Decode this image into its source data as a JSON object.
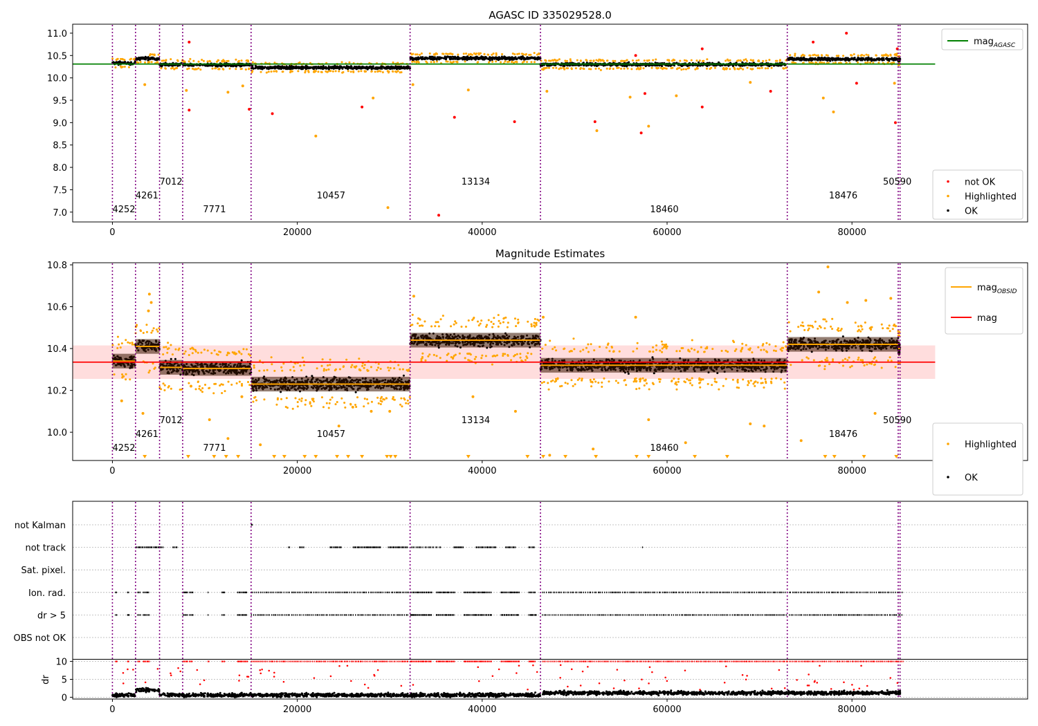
{
  "figure": {
    "background": "#ffffff"
  },
  "colors": {
    "ok": "#000000",
    "highlighted": "#ffa500",
    "not_ok": "#ff0000",
    "obs_line": "#800080",
    "agasc_line": "#008000",
    "mag_line": "#ff0000",
    "mag_band": "#ffd7d7",
    "obsid_line": "#ffa500",
    "grid": "#b0b0b0"
  },
  "chart_data": [
    {
      "type": "scatter",
      "title": "AGASC ID 335029528.0",
      "xlim": [
        -4300,
        99000
      ],
      "ylim": [
        6.78,
        11.2
      ],
      "xticks": [
        0,
        20000,
        40000,
        60000,
        80000
      ],
      "xtick_labels": [
        "0",
        "20000",
        "40000",
        "60000",
        "80000"
      ],
      "yticks": [
        7.0,
        7.5,
        8.0,
        8.5,
        9.0,
        9.5,
        10.0,
        10.5,
        11.0
      ],
      "ytick_labels": [
        "7.0",
        "7.5",
        "8.0",
        "8.5",
        "9.0",
        "9.5",
        "10.0",
        "10.5",
        "11.0"
      ],
      "reference_lines": [
        {
          "name": "mag_AGASC",
          "y": 10.31,
          "x_range": [
            -4300,
            89000
          ]
        }
      ],
      "legend": {
        "top_right": [
          {
            "label": "mag",
            "sub": "AGASC",
            "kind": "line",
            "color_key": "agasc_line"
          }
        ],
        "bottom_right": [
          {
            "label": "not OK",
            "kind": "dot",
            "color_key": "not_ok"
          },
          {
            "label": "Highlighted",
            "kind": "dot",
            "color_key": "highlighted"
          },
          {
            "label": "OK",
            "kind": "dot",
            "color_key": "ok"
          }
        ]
      },
      "outliers": [
        {
          "x": 8300,
          "y": 10.8,
          "kind": "not_ok"
        },
        {
          "x": 8300,
          "y": 9.28,
          "kind": "not_ok"
        },
        {
          "x": 14800,
          "y": 9.3,
          "kind": "not_ok"
        },
        {
          "x": 17300,
          "y": 9.2,
          "kind": "not_ok"
        },
        {
          "x": 27000,
          "y": 9.35,
          "kind": "not_ok"
        },
        {
          "x": 35300,
          "y": 6.93,
          "kind": "not_ok"
        },
        {
          "x": 37000,
          "y": 9.12,
          "kind": "not_ok"
        },
        {
          "x": 43500,
          "y": 9.02,
          "kind": "not_ok"
        },
        {
          "x": 52200,
          "y": 9.02,
          "kind": "not_ok"
        },
        {
          "x": 57200,
          "y": 8.77,
          "kind": "not_ok"
        },
        {
          "x": 57600,
          "y": 9.65,
          "kind": "not_ok"
        },
        {
          "x": 56600,
          "y": 10.5,
          "kind": "not_ok"
        },
        {
          "x": 63800,
          "y": 9.35,
          "kind": "not_ok"
        },
        {
          "x": 63800,
          "y": 10.65,
          "kind": "not_ok"
        },
        {
          "x": 71200,
          "y": 9.7,
          "kind": "not_ok"
        },
        {
          "x": 75800,
          "y": 10.8,
          "kind": "not_ok"
        },
        {
          "x": 79400,
          "y": 11.0,
          "kind": "not_ok"
        },
        {
          "x": 80500,
          "y": 9.88,
          "kind": "not_ok"
        },
        {
          "x": 84700,
          "y": 9.0,
          "kind": "not_ok"
        },
        {
          "x": 84900,
          "y": 10.65,
          "kind": "not_ok"
        },
        {
          "x": 22000,
          "y": 8.7,
          "kind": "highlighted"
        },
        {
          "x": 29800,
          "y": 7.1,
          "kind": "highlighted"
        },
        {
          "x": 28200,
          "y": 9.55,
          "kind": "highlighted"
        },
        {
          "x": 38500,
          "y": 9.73,
          "kind": "highlighted"
        },
        {
          "x": 56000,
          "y": 9.57,
          "kind": "highlighted"
        },
        {
          "x": 58000,
          "y": 8.92,
          "kind": "highlighted"
        },
        {
          "x": 52400,
          "y": 8.82,
          "kind": "highlighted"
        },
        {
          "x": 76900,
          "y": 9.55,
          "kind": "highlighted"
        },
        {
          "x": 78000,
          "y": 9.24,
          "kind": "highlighted"
        },
        {
          "x": 84600,
          "y": 9.88,
          "kind": "highlighted"
        },
        {
          "x": 3500,
          "y": 9.85,
          "kind": "highlighted"
        },
        {
          "x": 8000,
          "y": 9.72,
          "kind": "highlighted"
        },
        {
          "x": 12500,
          "y": 9.68,
          "kind": "highlighted"
        },
        {
          "x": 14100,
          "y": 9.82,
          "kind": "highlighted"
        },
        {
          "x": 32500,
          "y": 9.85,
          "kind": "highlighted"
        },
        {
          "x": 47000,
          "y": 9.7,
          "kind": "highlighted"
        },
        {
          "x": 61000,
          "y": 9.6,
          "kind": "highlighted"
        },
        {
          "x": 69000,
          "y": 9.9,
          "kind": "highlighted"
        }
      ]
    },
    {
      "type": "scatter",
      "title": "Magnitude Estimates",
      "xlim": [
        -4300,
        99000
      ],
      "ylim": [
        9.865,
        10.81
      ],
      "xticks": [
        0,
        20000,
        40000,
        60000,
        80000
      ],
      "xtick_labels": [
        "0",
        "20000",
        "40000",
        "60000",
        "80000"
      ],
      "yticks": [
        10.0,
        10.2,
        10.4,
        10.6,
        10.8
      ],
      "ytick_labels": [
        "10.0",
        "10.2",
        "10.4",
        "10.6",
        "10.8"
      ],
      "reference_lines": [
        {
          "name": "mag",
          "y": 10.335,
          "band": [
            10.255,
            10.415
          ],
          "x_range": [
            -4300,
            89000
          ]
        }
      ],
      "legend": {
        "top_right": [
          {
            "label": "mag",
            "sub": "OBSID",
            "kind": "line",
            "color_key": "obsid_line"
          },
          {
            "label": "mag",
            "sub": "",
            "kind": "line",
            "color_key": "mag_line"
          }
        ],
        "bottom_right": [
          {
            "label": "Highlighted",
            "kind": "dot",
            "color_key": "highlighted"
          },
          {
            "label": "OK",
            "kind": "dot",
            "color_key": "ok"
          }
        ]
      },
      "outliers": [
        {
          "x": 4000,
          "y": 10.66,
          "kind": "highlighted"
        },
        {
          "x": 4200,
          "y": 10.62,
          "kind": "highlighted"
        },
        {
          "x": 3900,
          "y": 10.58,
          "kind": "highlighted"
        },
        {
          "x": 77400,
          "y": 10.79,
          "kind": "highlighted"
        },
        {
          "x": 32600,
          "y": 10.65,
          "kind": "highlighted"
        },
        {
          "x": 46600,
          "y": 10.55,
          "kind": "highlighted"
        },
        {
          "x": 56600,
          "y": 10.55,
          "kind": "highlighted"
        },
        {
          "x": 76400,
          "y": 10.67,
          "kind": "highlighted"
        },
        {
          "x": 79500,
          "y": 10.62,
          "kind": "highlighted"
        },
        {
          "x": 81500,
          "y": 10.63,
          "kind": "highlighted"
        },
        {
          "x": 84200,
          "y": 10.64,
          "kind": "highlighted"
        },
        {
          "x": 26000,
          "y": 10.12,
          "kind": "highlighted"
        },
        {
          "x": 28000,
          "y": 10.1,
          "kind": "highlighted"
        },
        {
          "x": 30000,
          "y": 10.1,
          "kind": "highlighted"
        },
        {
          "x": 39000,
          "y": 10.17,
          "kind": "highlighted"
        },
        {
          "x": 43600,
          "y": 10.1,
          "kind": "highlighted"
        },
        {
          "x": 16000,
          "y": 9.94,
          "kind": "highlighted"
        },
        {
          "x": 24500,
          "y": 10.03,
          "kind": "highlighted"
        },
        {
          "x": 10500,
          "y": 10.06,
          "kind": "highlighted"
        },
        {
          "x": 12500,
          "y": 9.97,
          "kind": "highlighted"
        },
        {
          "x": 52000,
          "y": 9.92,
          "kind": "highlighted"
        },
        {
          "x": 58000,
          "y": 10.06,
          "kind": "highlighted"
        },
        {
          "x": 62000,
          "y": 9.95,
          "kind": "highlighted"
        },
        {
          "x": 69000,
          "y": 10.04,
          "kind": "highlighted"
        },
        {
          "x": 70500,
          "y": 10.03,
          "kind": "highlighted"
        },
        {
          "x": 74500,
          "y": 9.96,
          "kind": "highlighted"
        },
        {
          "x": 82500,
          "y": 10.09,
          "kind": "highlighted"
        },
        {
          "x": 47300,
          "y": 9.89,
          "kind": "highlighted"
        },
        {
          "x": 1000,
          "y": 10.15,
          "kind": "highlighted"
        },
        {
          "x": 3300,
          "y": 10.09,
          "kind": "highlighted"
        },
        {
          "x": 8500,
          "y": 10.22,
          "kind": "highlighted"
        },
        {
          "x": 14000,
          "y": 10.17,
          "kind": "highlighted"
        }
      ],
      "below_axis_markers": [
        3500,
        8200,
        11000,
        12300,
        13600,
        17500,
        18600,
        20800,
        22000,
        24300,
        25500,
        27000,
        29700,
        30100,
        30600,
        38500,
        44900,
        46600,
        49000,
        52300,
        56700,
        58000,
        63000,
        66500,
        77100,
        78100,
        81300,
        84800
      ]
    },
    {
      "type": "scatter",
      "title": "",
      "xlim": [
        -4300,
        99000
      ],
      "flag_rows": [
        "not Kalman",
        "not track",
        "Sat. pixel.",
        "Ion. rad.",
        "dr > 5",
        "OBS not OK"
      ],
      "flag_intervals": {
        "not Kalman": [
          [
            15000,
            15100
          ]
        ],
        "not track": [
          [
            2500,
            5500
          ],
          [
            6500,
            7000
          ],
          [
            19000,
            19200
          ],
          [
            20200,
            20700
          ],
          [
            23500,
            24800
          ],
          [
            26000,
            29000
          ],
          [
            29800,
            32000
          ],
          [
            32300,
            35600
          ],
          [
            36900,
            38000
          ],
          [
            39300,
            41500
          ],
          [
            42500,
            43600
          ],
          [
            45000,
            45700
          ],
          [
            57300,
            57400
          ]
        ],
        "Sat. pixel.": [],
        "Ion. rad.": [
          [
            300,
            500
          ],
          [
            1600,
            1800
          ],
          [
            2700,
            3000
          ],
          [
            3300,
            4000
          ],
          [
            7600,
            8100
          ],
          [
            8300,
            8700
          ],
          [
            10300,
            10400
          ],
          [
            11800,
            12100
          ],
          [
            13500,
            14600
          ],
          [
            15000,
            32000
          ],
          [
            32200,
            34500
          ],
          [
            35000,
            37000
          ],
          [
            38000,
            41000
          ],
          [
            42000,
            44000
          ],
          [
            45000,
            45800
          ],
          [
            46500,
            73000
          ],
          [
            73200,
            85500
          ]
        ],
        "dr > 5": [
          [
            300,
            500
          ],
          [
            1600,
            1800
          ],
          [
            2700,
            3000
          ],
          [
            3300,
            4000
          ],
          [
            7600,
            8100
          ],
          [
            8300,
            8700
          ],
          [
            10300,
            10400
          ],
          [
            11800,
            12100
          ],
          [
            13500,
            14600
          ],
          [
            15000,
            32000
          ],
          [
            32200,
            34500
          ],
          [
            35000,
            37000
          ],
          [
            38000,
            41000
          ],
          [
            42000,
            44000
          ],
          [
            45000,
            45800
          ],
          [
            46500,
            73000
          ],
          [
            73200,
            85500
          ]
        ],
        "OBS not OK": []
      },
      "dr_axis": {
        "ylabel": "dr",
        "ylim": [
          -0.5,
          10.5
        ],
        "yticks": [
          0,
          5,
          10
        ],
        "ytick_labels": [
          "0",
          "5",
          "10"
        ]
      }
    }
  ],
  "observations": [
    {
      "obsid": "4252",
      "start": 0,
      "end": 2500,
      "panel1_mean": 10.33,
      "panel2_mean": 10.34,
      "label_level": 0
    },
    {
      "obsid": "4261",
      "start": 2500,
      "end": 5100,
      "panel1_mean": 10.43,
      "panel2_mean": 10.41,
      "label_level": 1
    },
    {
      "obsid": "7012",
      "start": 5100,
      "end": 7600,
      "panel1_mean": 10.3,
      "panel2_mean": 10.31,
      "label_level": 2
    },
    {
      "obsid": "7771",
      "start": 7600,
      "end": 15000,
      "panel1_mean": 10.29,
      "panel2_mean": 10.305,
      "label_level": 0
    },
    {
      "obsid": "10457",
      "start": 15000,
      "end": 32200,
      "panel1_mean": 10.23,
      "panel2_mean": 10.23,
      "label_level": 1
    },
    {
      "obsid": "13134",
      "start": 32200,
      "end": 46300,
      "panel1_mean": 10.44,
      "panel2_mean": 10.44,
      "label_level": 2
    },
    {
      "obsid": "18460",
      "start": 46300,
      "end": 73000,
      "panel1_mean": 10.3,
      "panel2_mean": 10.32,
      "label_level": 0
    },
    {
      "obsid": "18476",
      "start": 73000,
      "end": 85000,
      "panel1_mean": 10.42,
      "panel2_mean": 10.42,
      "label_level": 1
    },
    {
      "obsid": "50590",
      "start": 85000,
      "end": 85200,
      "panel1_mean": 10.4,
      "panel2_mean": 10.4,
      "label_level": 2
    }
  ]
}
